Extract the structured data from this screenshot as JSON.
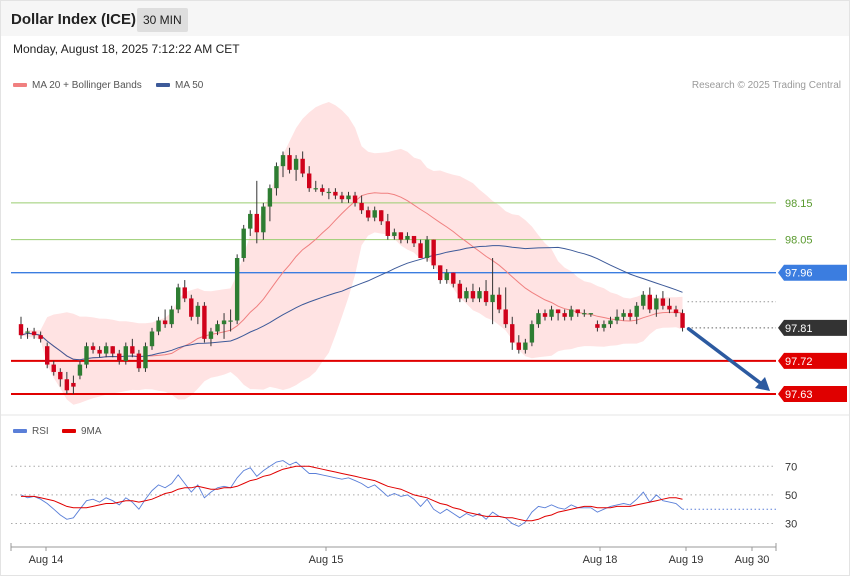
{
  "header": {
    "title": "Dollar Index (ICE)",
    "timeframe": "30 MIN"
  },
  "datetime": "Monday, August 18, 2025 7:12:22 AM CET",
  "copyright": "Research © 2025 Trading Central",
  "colors": {
    "bull": "#2e7d32",
    "bear": "#d0021b",
    "bands": "#ffe3e3",
    "ma20": "#f08080",
    "ma50": "#3d5a99",
    "green_level": "#9acd71",
    "blue_level": "#3b7de0",
    "red_level": "#e00000",
    "current": "#333333",
    "arrow": "#2c5aa0",
    "rsi": "#5a7fd8",
    "rsi_ma": "#e00000"
  },
  "chart_data": [
    {
      "type": "candlestick",
      "series_labels": [
        "MA 20 + Bollinger Bands",
        "MA 50"
      ],
      "ylim": [
        97.6,
        98.43
      ],
      "x_ticks": [
        "Aug 14",
        "Aug 15",
        "Aug 18",
        "Aug 19",
        "Aug 30"
      ],
      "price_levels": [
        {
          "label": "98.15",
          "value": 98.15,
          "kind": "resistance"
        },
        {
          "label": "98.05",
          "value": 98.05,
          "kind": "resistance"
        },
        {
          "label": "97.96",
          "value": 97.96,
          "kind": "pivot"
        },
        {
          "label": "97.81",
          "value": 97.81,
          "kind": "current"
        },
        {
          "label": "97.72",
          "value": 97.72,
          "kind": "support"
        },
        {
          "label": "97.63",
          "value": 97.63,
          "kind": "support"
        }
      ],
      "forecast_arrow": {
        "from": 97.81,
        "to": 97.63,
        "direction": "down"
      },
      "ohlc": [
        [
          97.82,
          97.84,
          97.78,
          97.79
        ],
        [
          97.8,
          97.81,
          97.78,
          97.8
        ],
        [
          97.8,
          97.81,
          97.78,
          97.79
        ],
        [
          97.79,
          97.8,
          97.77,
          97.78
        ],
        [
          97.76,
          97.77,
          97.7,
          97.71
        ],
        [
          97.71,
          97.72,
          97.68,
          97.69
        ],
        [
          97.69,
          97.7,
          97.65,
          97.67
        ],
        [
          97.67,
          97.69,
          97.63,
          97.64
        ],
        [
          97.66,
          97.68,
          97.63,
          97.65
        ],
        [
          97.68,
          97.72,
          97.67,
          97.71
        ],
        [
          97.71,
          97.77,
          97.7,
          97.76
        ],
        [
          97.76,
          97.77,
          97.74,
          97.75
        ],
        [
          97.75,
          97.76,
          97.73,
          97.74
        ],
        [
          97.74,
          97.77,
          97.73,
          97.76
        ],
        [
          97.76,
          97.76,
          97.73,
          97.74
        ],
        [
          97.74,
          97.75,
          97.71,
          97.72
        ],
        [
          97.72,
          97.77,
          97.71,
          97.76
        ],
        [
          97.76,
          97.78,
          97.73,
          97.74
        ],
        [
          97.74,
          97.75,
          97.69,
          97.7
        ],
        [
          97.7,
          97.77,
          97.69,
          97.76
        ],
        [
          97.76,
          97.81,
          97.75,
          97.8
        ],
        [
          97.8,
          97.84,
          97.79,
          97.83
        ],
        [
          97.83,
          97.86,
          97.81,
          97.82
        ],
        [
          97.82,
          97.87,
          97.81,
          97.86
        ],
        [
          97.86,
          97.93,
          97.85,
          97.92
        ],
        [
          97.92,
          97.94,
          97.88,
          97.89
        ],
        [
          97.89,
          97.9,
          97.83,
          97.84
        ],
        [
          97.84,
          97.88,
          97.82,
          97.87
        ],
        [
          97.87,
          97.88,
          97.77,
          97.78
        ],
        [
          97.78,
          97.81,
          97.76,
          97.8
        ],
        [
          97.8,
          97.83,
          97.79,
          97.82
        ],
        [
          97.82,
          97.85,
          97.78,
          97.83
        ],
        [
          97.83,
          97.86,
          97.8,
          97.83
        ],
        [
          97.83,
          98.01,
          97.82,
          98.0
        ],
        [
          98.0,
          98.09,
          97.99,
          98.08
        ],
        [
          98.08,
          98.13,
          98.06,
          98.12
        ],
        [
          98.12,
          98.21,
          98.04,
          98.07
        ],
        [
          98.07,
          98.15,
          98.05,
          98.14
        ],
        [
          98.14,
          98.2,
          98.1,
          98.19
        ],
        [
          98.19,
          98.26,
          98.17,
          98.25
        ],
        [
          98.25,
          98.29,
          98.22,
          98.28
        ],
        [
          98.28,
          98.3,
          98.23,
          98.24
        ],
        [
          98.24,
          98.28,
          98.21,
          98.27
        ],
        [
          98.27,
          98.29,
          98.22,
          98.23
        ],
        [
          98.23,
          98.25,
          98.18,
          98.19
        ],
        [
          98.19,
          98.21,
          98.18,
          98.19
        ],
        [
          98.19,
          98.2,
          98.17,
          98.18
        ],
        [
          98.18,
          98.19,
          98.16,
          98.18
        ],
        [
          98.18,
          98.19,
          98.16,
          98.17
        ],
        [
          98.17,
          98.18,
          98.15,
          98.16
        ],
        [
          98.16,
          98.18,
          98.15,
          98.17
        ],
        [
          98.17,
          98.18,
          98.14,
          98.15
        ],
        [
          98.15,
          98.17,
          98.12,
          98.13
        ],
        [
          98.13,
          98.14,
          98.1,
          98.11
        ],
        [
          98.11,
          98.14,
          98.1,
          98.13
        ],
        [
          98.13,
          98.13,
          98.09,
          98.1
        ],
        [
          98.1,
          98.12,
          98.05,
          98.06
        ],
        [
          98.06,
          98.08,
          98.05,
          98.07
        ],
        [
          98.07,
          98.07,
          98.04,
          98.05
        ],
        [
          98.05,
          98.07,
          98.04,
          98.06
        ],
        [
          98.06,
          98.06,
          98.03,
          98.04
        ],
        [
          98.04,
          98.05,
          98.0,
          98.0
        ],
        [
          98.0,
          98.06,
          97.99,
          98.05
        ],
        [
          98.05,
          98.05,
          97.97,
          97.98
        ],
        [
          97.98,
          97.98,
          97.93,
          97.94
        ],
        [
          97.94,
          97.97,
          97.93,
          97.96
        ],
        [
          97.96,
          97.96,
          97.92,
          97.93
        ],
        [
          97.93,
          97.94,
          97.88,
          97.89
        ],
        [
          97.89,
          97.92,
          97.88,
          97.91
        ],
        [
          97.91,
          97.93,
          97.88,
          97.89
        ],
        [
          97.89,
          97.92,
          97.88,
          97.91
        ],
        [
          97.91,
          97.94,
          97.87,
          97.88
        ],
        [
          97.88,
          98.0,
          97.82,
          97.9
        ],
        [
          97.9,
          97.92,
          97.85,
          97.86
        ],
        [
          97.86,
          97.92,
          97.81,
          97.82
        ],
        [
          97.82,
          97.84,
          97.75,
          97.77
        ],
        [
          97.77,
          97.79,
          97.74,
          97.75
        ],
        [
          97.75,
          97.78,
          97.74,
          97.77
        ],
        [
          97.77,
          97.83,
          97.76,
          97.82
        ],
        [
          97.82,
          97.86,
          97.81,
          97.85
        ],
        [
          97.85,
          97.86,
          97.83,
          97.84
        ],
        [
          97.84,
          97.87,
          97.83,
          97.86
        ],
        [
          97.86,
          97.86,
          97.83,
          97.85
        ],
        [
          97.85,
          97.86,
          97.83,
          97.84
        ],
        [
          97.84,
          97.87,
          97.83,
          97.86
        ],
        [
          97.86,
          97.86,
          97.84,
          97.85
        ],
        [
          97.85,
          97.86,
          97.84,
          97.85
        ],
        [
          97.85,
          97.85,
          97.84,
          97.85
        ],
        [
          97.82,
          97.83,
          97.8,
          97.81
        ],
        [
          97.81,
          97.83,
          97.8,
          97.82
        ],
        [
          97.82,
          97.84,
          97.81,
          97.83
        ],
        [
          97.83,
          97.86,
          97.82,
          97.84
        ],
        [
          97.84,
          97.86,
          97.83,
          97.85
        ],
        [
          97.85,
          97.86,
          97.83,
          97.84
        ],
        [
          97.84,
          97.88,
          97.82,
          97.87
        ],
        [
          97.87,
          97.91,
          97.86,
          97.9
        ],
        [
          97.9,
          97.92,
          97.85,
          97.86
        ],
        [
          97.86,
          97.9,
          97.84,
          97.89
        ],
        [
          97.89,
          97.91,
          97.86,
          97.87
        ],
        [
          97.87,
          97.89,
          97.85,
          97.86
        ],
        [
          97.86,
          97.87,
          97.84,
          97.85
        ],
        [
          97.85,
          97.86,
          97.8,
          97.81
        ]
      ]
    },
    {
      "type": "line",
      "series_labels": [
        "RSI",
        "9MA"
      ],
      "ylim": [
        22,
        80
      ],
      "y_ticks": [
        70,
        50,
        30
      ],
      "series": [
        {
          "name": "RSI",
          "values": [
            50,
            48,
            49,
            47,
            44,
            40,
            36,
            33,
            34,
            40,
            46,
            47,
            45,
            48,
            46,
            43,
            48,
            45,
            40,
            47,
            53,
            57,
            55,
            58,
            64,
            58,
            52,
            57,
            48,
            52,
            55,
            56,
            55,
            62,
            67,
            69,
            63,
            67,
            70,
            73,
            74,
            71,
            73,
            69,
            65,
            65,
            64,
            63,
            62,
            61,
            62,
            60,
            58,
            55,
            57,
            53,
            49,
            51,
            49,
            50,
            47,
            42,
            47,
            40,
            37,
            40,
            37,
            34,
            37,
            35,
            37,
            33,
            38,
            35,
            34,
            30,
            28,
            31,
            38,
            42,
            41,
            43,
            41,
            40,
            43,
            41,
            41,
            41,
            38,
            40,
            42,
            43,
            44,
            43,
            47,
            52,
            45,
            50,
            46,
            45,
            44,
            40
          ]
        },
        {
          "name": "9MA",
          "values": [
            49,
            49,
            49,
            48,
            47,
            46,
            44,
            42,
            41,
            41,
            41,
            42,
            43,
            44,
            44,
            45,
            46,
            46,
            45,
            46,
            47,
            49,
            51,
            52,
            54,
            55,
            55,
            56,
            55,
            54,
            54,
            55,
            55,
            56,
            58,
            60,
            61,
            63,
            64,
            66,
            68,
            69,
            70,
            70,
            70,
            69,
            68,
            67,
            66,
            65,
            64,
            63,
            62,
            61,
            60,
            58,
            56,
            55,
            54,
            52,
            50,
            49,
            48,
            46,
            44,
            43,
            41,
            40,
            38,
            37,
            36,
            35,
            35,
            35,
            34,
            34,
            33,
            32,
            32,
            33,
            35,
            36,
            38,
            39,
            40,
            41,
            42,
            42,
            41,
            41,
            41,
            42,
            42,
            42,
            43,
            44,
            45,
            46,
            47,
            48,
            48,
            47
          ]
        }
      ]
    }
  ]
}
